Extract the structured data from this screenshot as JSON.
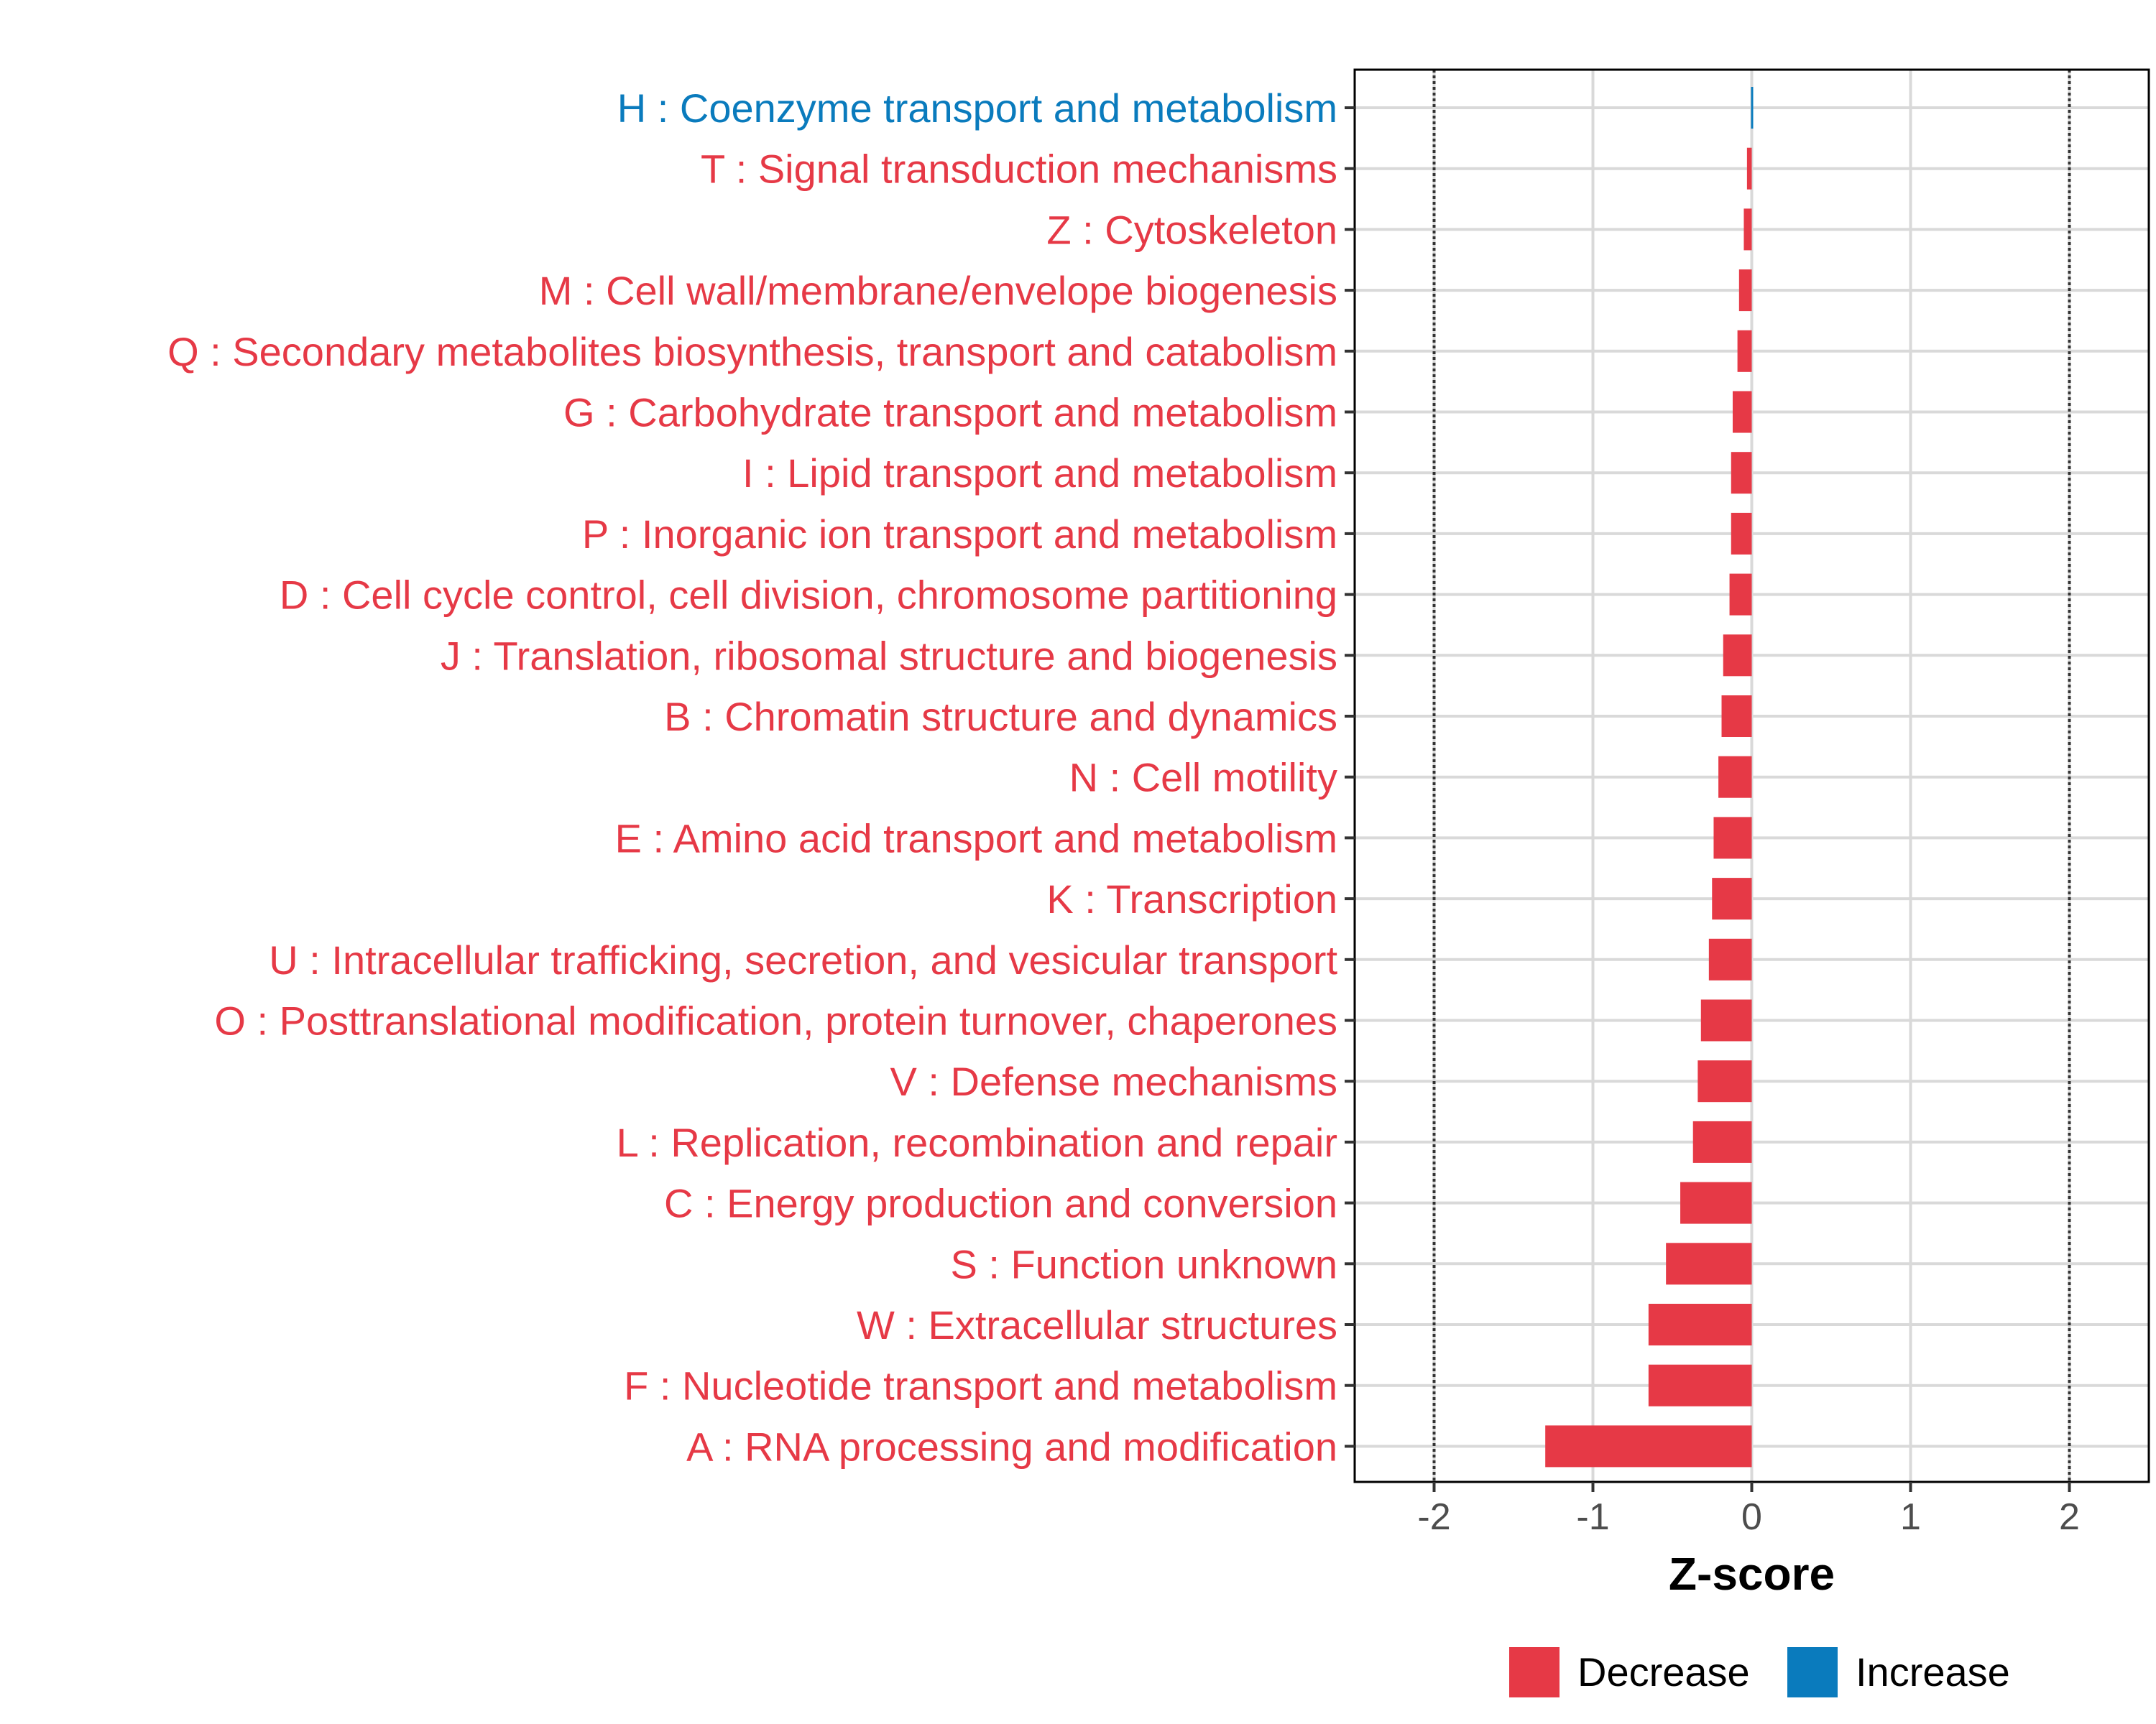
{
  "chart_data": {
    "type": "bar",
    "orientation": "horizontal",
    "title": "",
    "xlabel": "Z-score",
    "ylabel": "",
    "xlim": [
      -2.5,
      2.5
    ],
    "x_ticks": [
      -2,
      -1,
      0,
      1,
      2
    ],
    "x_tick_labels": [
      "-2",
      "-1",
      "0",
      "1",
      "2"
    ],
    "reference_lines": [
      -2,
      2
    ],
    "grid": true,
    "colors": {
      "Decrease": "#e63946",
      "Increase": "#0a7bbd"
    },
    "categories": [
      "H : Coenzyme transport and metabolism",
      "T : Signal transduction mechanisms",
      "Z : Cytoskeleton",
      "M : Cell wall/membrane/envelope biogenesis",
      "Q : Secondary metabolites biosynthesis, transport and catabolism",
      "G : Carbohydrate transport and metabolism",
      "I : Lipid transport and metabolism",
      "P : Inorganic ion transport and metabolism",
      "D : Cell cycle control, cell division, chromosome partitioning",
      "J : Translation, ribosomal structure and biogenesis",
      "B : Chromatin structure and dynamics",
      "N : Cell motility",
      "E : Amino acid transport and metabolism",
      "K : Transcription",
      "U : Intracellular trafficking, secretion, and vesicular transport",
      "O : Posttranslational modification, protein turnover, chaperones",
      "V : Defense mechanisms",
      "L : Replication, recombination and repair",
      "C : Energy production and conversion",
      "S : Function unknown",
      "W : Extracellular structures",
      "F : Nucleotide transport and metabolism",
      "A : RNA processing and modification"
    ],
    "values": [
      0.01,
      -0.03,
      -0.05,
      -0.08,
      -0.09,
      -0.12,
      -0.13,
      -0.13,
      -0.14,
      -0.18,
      -0.19,
      -0.21,
      -0.24,
      -0.25,
      -0.27,
      -0.32,
      -0.34,
      -0.37,
      -0.45,
      -0.54,
      -0.65,
      -0.65,
      -1.3
    ],
    "groups": [
      "Increase",
      "Decrease",
      "Decrease",
      "Decrease",
      "Decrease",
      "Decrease",
      "Decrease",
      "Decrease",
      "Decrease",
      "Decrease",
      "Decrease",
      "Decrease",
      "Decrease",
      "Decrease",
      "Decrease",
      "Decrease",
      "Decrease",
      "Decrease",
      "Decrease",
      "Decrease",
      "Decrease",
      "Decrease",
      "Decrease"
    ],
    "legend": {
      "position": "bottom",
      "entries": [
        {
          "label": "Decrease",
          "color": "#e63946"
        },
        {
          "label": "Increase",
          "color": "#0a7bbd"
        }
      ]
    }
  }
}
